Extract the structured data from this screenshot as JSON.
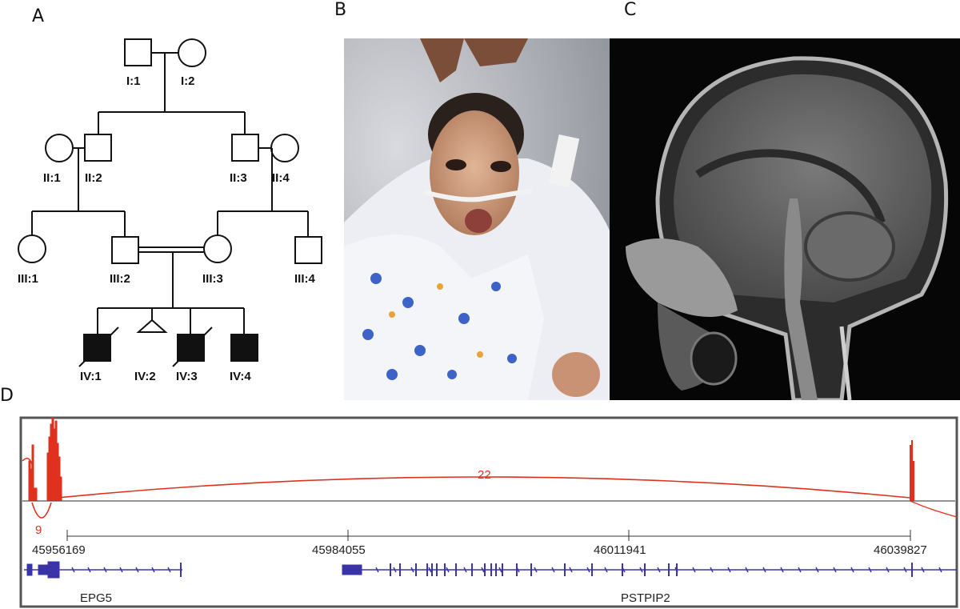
{
  "panels": {
    "a": "A",
    "b": "B",
    "c": "C",
    "d": "D"
  },
  "pedigree": {
    "labels": {
      "I1": "I:1",
      "I2": "I:2",
      "II1": "II:1",
      "II2": "II:2",
      "II3": "II:3",
      "II4": "II:4",
      "III1": "III:1",
      "III2": "III:2",
      "III3": "III:3",
      "III4": "III:4",
      "IV1": "IV:1",
      "IV2": "IV:2",
      "IV3": "IV:3",
      "IV4": "IV:4"
    },
    "affected_color": "#111111"
  },
  "sashimi": {
    "color": "#e0301e",
    "junctions": {
      "main": "22",
      "small": "9"
    },
    "ticks": [
      "45956169",
      "45984055",
      "46011941",
      "46039827"
    ],
    "genes": {
      "left": "EPG5",
      "right": "PSTPIP2"
    },
    "gene_color": "#3a34a8"
  }
}
